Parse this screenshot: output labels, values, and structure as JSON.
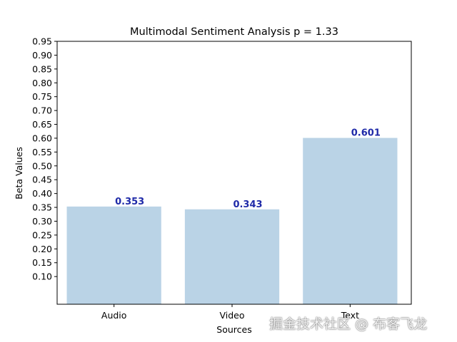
{
  "chart_data": {
    "type": "bar",
    "title": "Multimodal Sentiment Analysis p = 1.33",
    "xlabel": "Sources",
    "ylabel": "Beta Values",
    "categories": [
      "Audio",
      "Video",
      "Text"
    ],
    "values": [
      0.353,
      0.343,
      0.601
    ],
    "value_labels": [
      "0.353",
      "0.343",
      "0.601"
    ],
    "ylim": [
      0.0,
      0.95
    ],
    "yticks": [
      0.1,
      0.15,
      0.2,
      0.25,
      0.3,
      0.35,
      0.4,
      0.45,
      0.5,
      0.55,
      0.6,
      0.65,
      0.7,
      0.75,
      0.8,
      0.85,
      0.9,
      0.95
    ],
    "ytick_labels": [
      "0.10",
      "0.15",
      "0.20",
      "0.25",
      "0.30",
      "0.35",
      "0.40",
      "0.45",
      "0.50",
      "0.55",
      "0.60",
      "0.65",
      "0.70",
      "0.75",
      "0.80",
      "0.85",
      "0.90",
      "0.95"
    ],
    "grid": false,
    "legend": "none",
    "bar_color": "#bad3e6",
    "label_color": "#1f2aa8"
  },
  "watermark": "掘金技术社区 @ 布客飞龙"
}
